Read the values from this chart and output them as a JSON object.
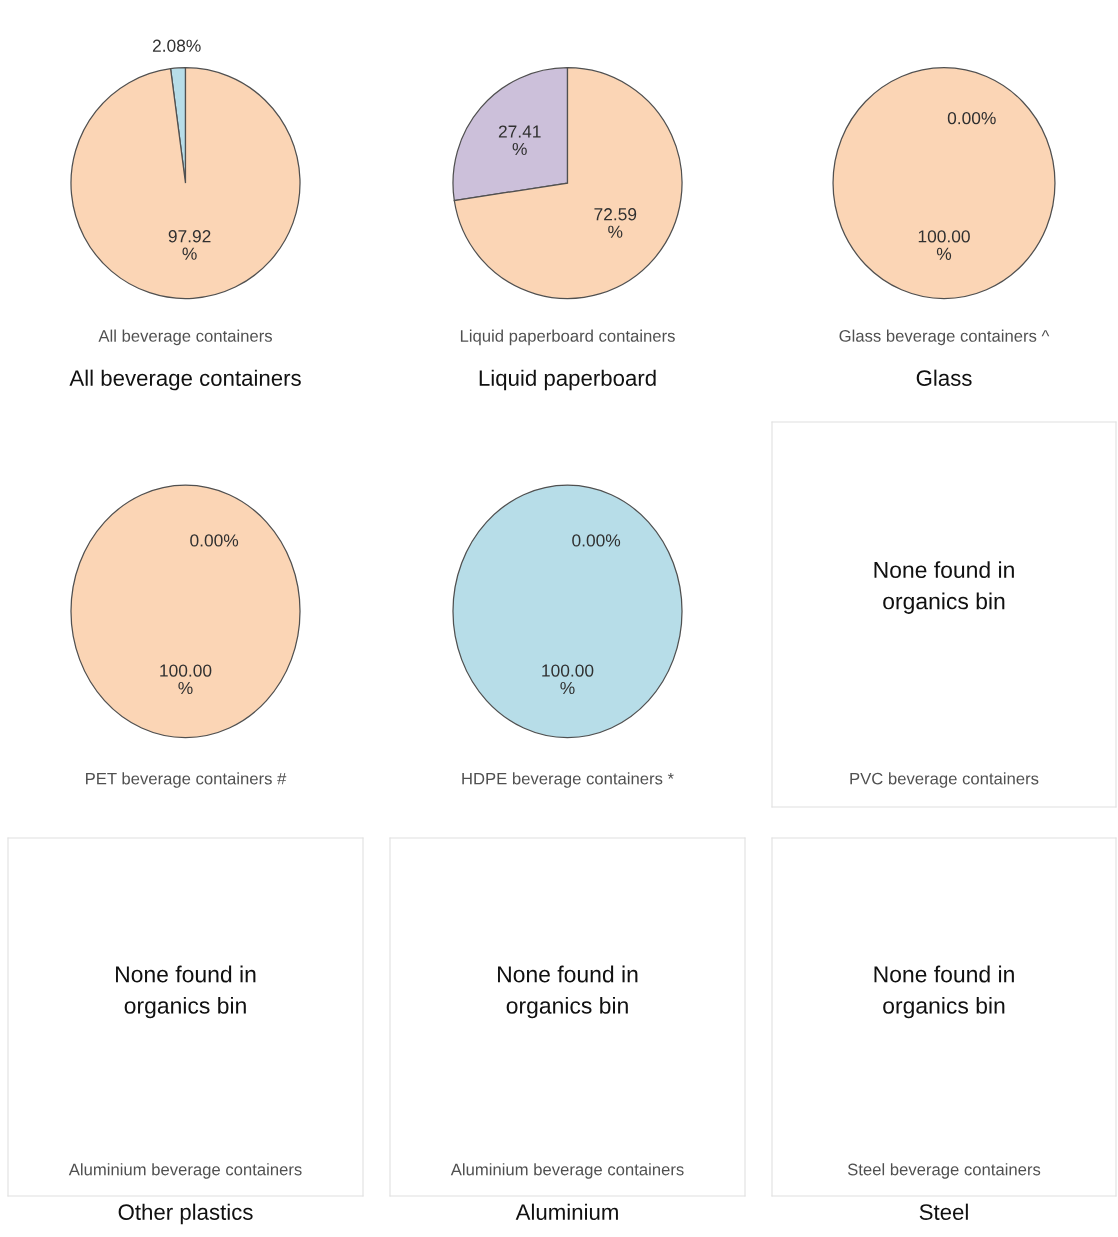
{
  "chart_data": [
    {
      "type": "pie",
      "title": "All beverage containers",
      "subtitle": "All beverage containers",
      "categories": [
        null,
        null
      ],
      "values": [
        2.08,
        97.92
      ],
      "colors": [
        "#b7dde8",
        "#fbd5b5"
      ],
      "value_labels": [
        "2.08%",
        "97.92\n%"
      ]
    },
    {
      "type": "pie",
      "title": "Liquid paperboard",
      "subtitle": "Liquid paperboard containers",
      "categories": [
        null,
        null
      ],
      "values": [
        27.41,
        72.59
      ],
      "colors": [
        "#ccc0da",
        "#fbd5b5"
      ],
      "value_labels": [
        "27.41\n%",
        "72.59\n%"
      ]
    },
    {
      "type": "pie",
      "title": "Glass",
      "subtitle": "Glass beverage containers ^",
      "categories": [
        null,
        null
      ],
      "values": [
        0.0,
        100.0
      ],
      "colors": [
        "#b7dde8",
        "#fbd5b5"
      ],
      "value_labels": [
        "0.00%",
        "100.00\n%"
      ]
    },
    {
      "type": "pie",
      "subtitle": "PET beverage containers #",
      "categories": [
        null,
        null
      ],
      "values": [
        0.0,
        100.0
      ],
      "colors": [
        "#b7dde8",
        "#fbd5b5"
      ],
      "value_labels": [
        "0.00%",
        "100.00\n%"
      ]
    },
    {
      "type": "pie",
      "subtitle": "HDPE beverage containers *",
      "categories": [
        null,
        null
      ],
      "values": [
        0.0,
        100.0
      ],
      "colors": [
        "#fbd5b5",
        "#b7dde8"
      ],
      "value_labels": [
        "0.00%",
        "100.00\n%"
      ]
    },
    {
      "type": "other",
      "subtitle": "PVC beverage containers",
      "annotations": [
        "None found in\norganics bin"
      ]
    },
    {
      "type": "other",
      "title": "Other plastics",
      "subtitle": "Aluminium beverage containers",
      "annotations": [
        "None found in\norganics bin"
      ]
    },
    {
      "type": "other",
      "title": "Aluminium",
      "subtitle": "Aluminium beverage containers",
      "annotations": [
        "None found in\norganics bin"
      ]
    },
    {
      "type": "other",
      "title": "Steel",
      "subtitle": "Steel beverage containers",
      "annotations": [
        "None found in\norganics bin"
      ]
    }
  ]
}
